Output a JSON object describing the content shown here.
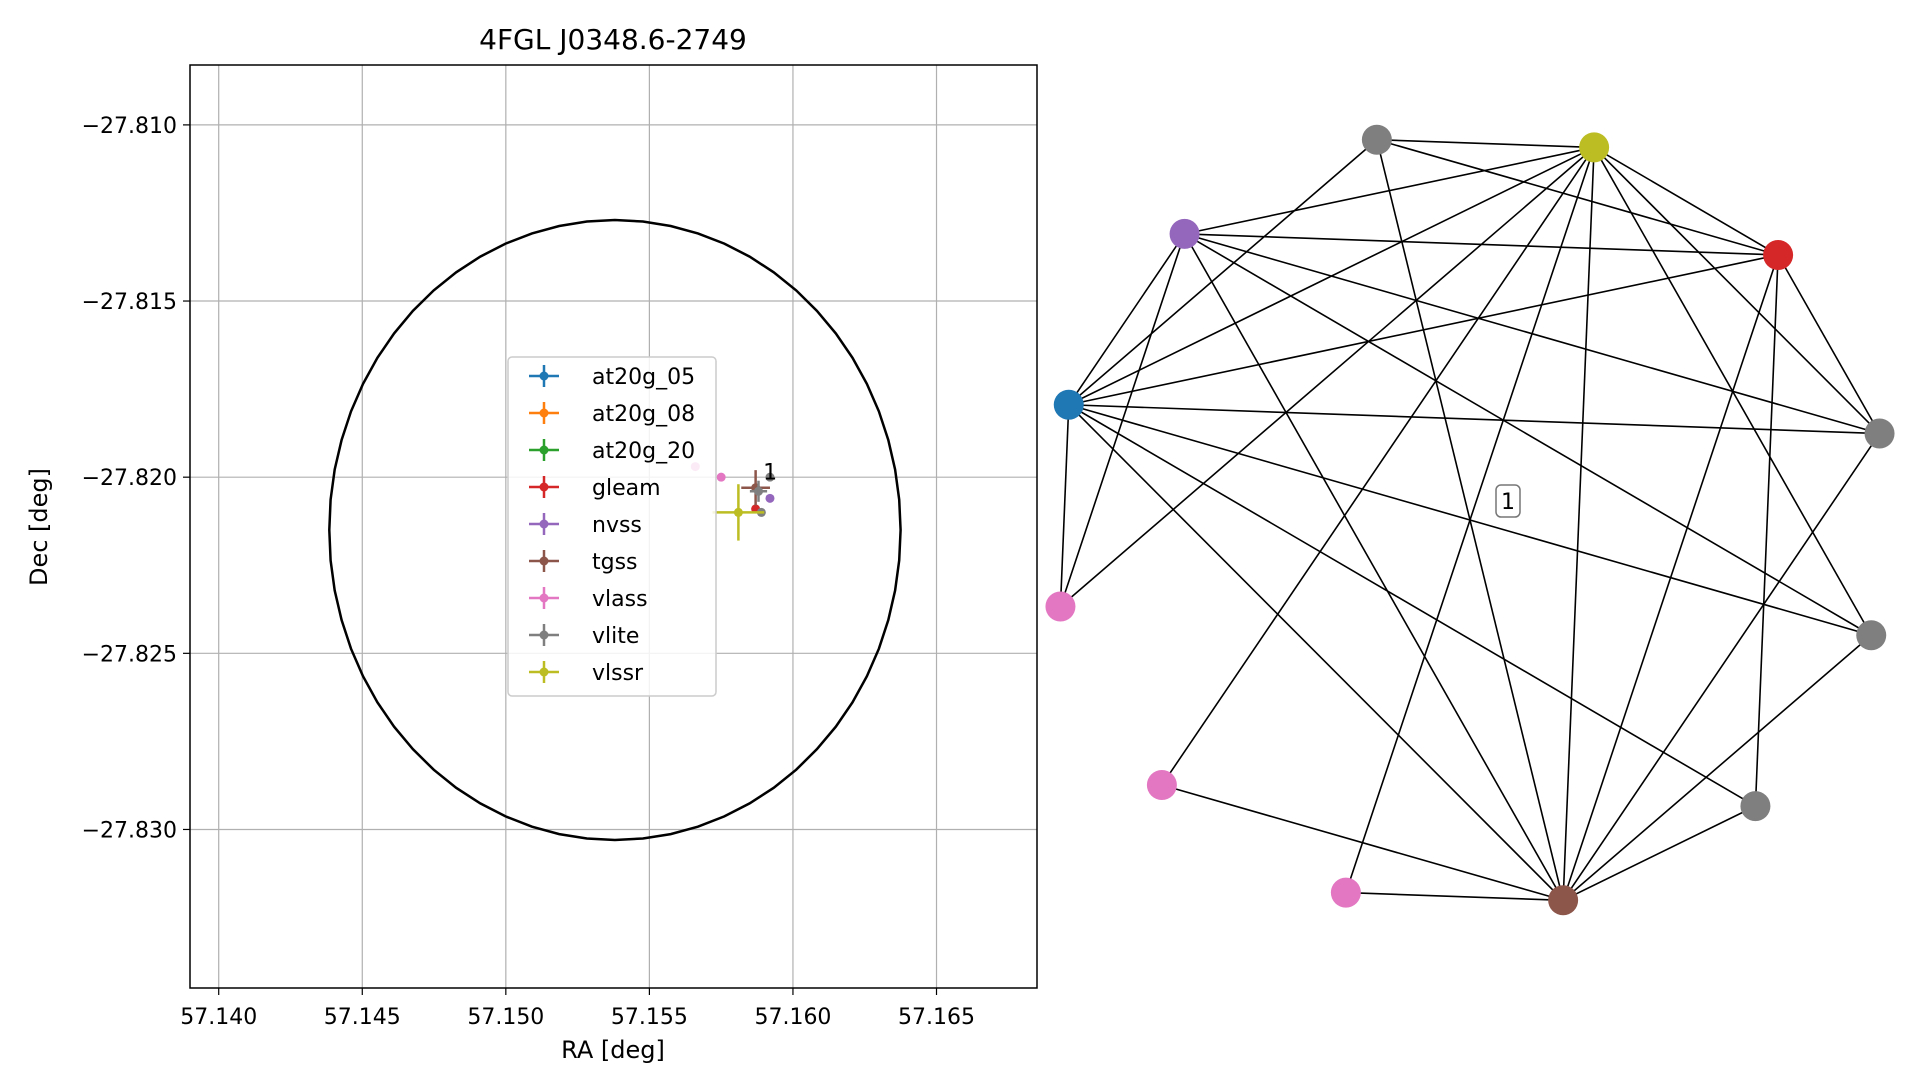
{
  "chart_data": [
    {
      "type": "scatter",
      "title": "4FGL J0348.6-2749",
      "xlabel": "RA [deg]",
      "ylabel": "Dec [deg]",
      "xlim": [
        57.139,
        57.1685
      ],
      "ylim": [
        -27.8345,
        -27.8083
      ],
      "xticks": [
        57.14,
        57.145,
        57.15,
        57.155,
        57.16,
        57.165
      ],
      "xtick_labels": [
        "57.140",
        "57.145",
        "57.150",
        "57.155",
        "57.160",
        "57.165"
      ],
      "yticks": [
        -27.81,
        -27.815,
        -27.82,
        -27.825,
        -27.83
      ],
      "ytick_labels": [
        "−27.810",
        "−27.815",
        "−27.820",
        "−27.825",
        "−27.830"
      ],
      "grid": true,
      "legend_position": "center",
      "error_ellipse": {
        "center_ra": 57.1538,
        "center_dec": -27.8215,
        "radius_ra": 0.00995,
        "radius_dec": 0.0088,
        "color": "#000000"
      },
      "series": [
        {
          "name": "at20g_05",
          "color": "#1f77b4",
          "points": []
        },
        {
          "name": "at20g_08",
          "color": "#ff7f0e",
          "points": []
        },
        {
          "name": "at20g_20",
          "color": "#2ca02c",
          "points": []
        },
        {
          "name": "gleam",
          "color": "#d62728",
          "points": [
            {
              "ra": 57.1587,
              "dec": -27.8209,
              "ra_err": 0.0,
              "dec_err": 0.0
            }
          ]
        },
        {
          "name": "nvss",
          "color": "#9467bd",
          "points": [
            {
              "ra": 57.1592,
              "dec": -27.8206,
              "ra_err": 0.0,
              "dec_err": 0.0
            }
          ]
        },
        {
          "name": "tgss",
          "color": "#8c564b",
          "points": [
            {
              "ra": 57.1587,
              "dec": -27.8203,
              "ra_err": 0.0005,
              "dec_err": 0.0005
            }
          ]
        },
        {
          "name": "vlass",
          "color": "#e377c2",
          "points": [
            {
              "ra": 57.1566,
              "dec": -27.8197,
              "ra_err": 0.0,
              "dec_err": 0.0
            },
            {
              "ra": 57.1575,
              "dec": -27.82,
              "ra_err": 0.0,
              "dec_err": 0.0
            }
          ]
        },
        {
          "name": "vlite",
          "color": "#7f7f7f",
          "points": [
            {
              "ra": 57.1592,
              "dec": -27.82,
              "ra_err": 0.0,
              "dec_err": 0.0
            },
            {
              "ra": 57.1588,
              "dec": -27.8204,
              "ra_err": 0.0003,
              "dec_err": 0.0003
            },
            {
              "ra": 57.1589,
              "dec": -27.821,
              "ra_err": 0.0,
              "dec_err": 0.0
            }
          ]
        },
        {
          "name": "vlssr",
          "color": "#bcbd22",
          "points": [
            {
              "ra": 57.1581,
              "dec": -27.821,
              "ra_err": 0.0009,
              "dec_err": 0.0008
            }
          ]
        }
      ],
      "annotations": [
        {
          "text": "1",
          "ra": 57.1591,
          "dec": -27.8199
        }
      ]
    },
    {
      "type": "network",
      "nodes": [
        {
          "id": "gray_top",
          "color": "#7f7f7f"
        },
        {
          "id": "gray_topright",
          "color": "#7f7f7f"
        },
        {
          "id": "brown",
          "color": "#8c564b"
        },
        {
          "id": "pink_topleft",
          "color": "#e377c2"
        },
        {
          "id": "pink_left",
          "color": "#e377c2"
        },
        {
          "id": "pink_right",
          "color": "#e377c2"
        },
        {
          "id": "blue",
          "color": "#1f77b4"
        },
        {
          "id": "purple",
          "color": "#9467bd"
        },
        {
          "id": "gray_right",
          "color": "#7f7f7f"
        },
        {
          "id": "olive",
          "color": "#bcbd22"
        },
        {
          "id": "red",
          "color": "#d62728"
        },
        {
          "id": "gray_bottom",
          "color": "#7f7f7f"
        }
      ],
      "edges": [
        [
          "pink_topleft",
          "brown"
        ],
        [
          "pink_topleft",
          "olive"
        ],
        [
          "pink_left",
          "brown"
        ],
        [
          "pink_left",
          "olive"
        ],
        [
          "brown",
          "gray_top"
        ],
        [
          "brown",
          "gray_topright"
        ],
        [
          "brown",
          "blue"
        ],
        [
          "brown",
          "olive"
        ],
        [
          "brown",
          "red"
        ],
        [
          "brown",
          "purple"
        ],
        [
          "brown",
          "gray_right"
        ],
        [
          "brown",
          "gray_bottom"
        ],
        [
          "gray_top",
          "blue"
        ],
        [
          "gray_top",
          "olive"
        ],
        [
          "gray_top",
          "purple"
        ],
        [
          "gray_topright",
          "blue"
        ],
        [
          "gray_topright",
          "red"
        ],
        [
          "pink_right",
          "blue"
        ],
        [
          "pink_right",
          "olive"
        ],
        [
          "pink_right",
          "purple"
        ],
        [
          "blue",
          "purple"
        ],
        [
          "blue",
          "gray_right"
        ],
        [
          "blue",
          "olive"
        ],
        [
          "blue",
          "red"
        ],
        [
          "blue",
          "gray_bottom"
        ],
        [
          "purple",
          "olive"
        ],
        [
          "purple",
          "red"
        ],
        [
          "purple",
          "gray_bottom"
        ],
        [
          "gray_right",
          "olive"
        ],
        [
          "gray_right",
          "red"
        ],
        [
          "olive",
          "red"
        ],
        [
          "olive",
          "gray_bottom"
        ],
        [
          "red",
          "gray_bottom"
        ]
      ],
      "label": "1"
    }
  ]
}
